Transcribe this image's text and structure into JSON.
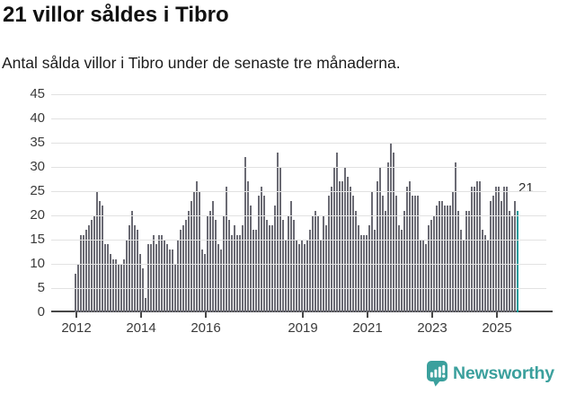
{
  "header": {
    "title": "21 villor såldes i Tibro",
    "subtitle": "Antal sålda villor i Tibro under de senaste tre månaderna."
  },
  "chart_data": {
    "type": "bar",
    "title": "21 villor såldes i Tibro",
    "subtitle": "Antal sålda villor i Tibro under de senaste tre månaderna.",
    "frequency": "monthly",
    "x_start_year": 2012,
    "values": [
      8,
      10,
      16,
      16,
      17,
      18,
      19,
      20,
      25,
      23,
      22,
      14,
      14,
      12,
      11,
      11,
      10,
      10,
      11,
      15,
      18,
      21,
      18,
      17,
      12,
      9,
      3,
      14,
      14,
      16,
      14,
      16,
      16,
      15,
      14,
      13,
      13,
      10,
      15,
      17,
      18,
      19,
      21,
      23,
      25,
      27,
      25,
      13,
      12,
      20,
      21,
      23,
      19,
      14,
      13,
      20,
      26,
      19,
      16,
      18,
      16,
      16,
      18,
      32,
      27,
      22,
      17,
      17,
      24,
      26,
      24,
      19,
      18,
      18,
      22,
      33,
      30,
      19,
      15,
      20,
      23,
      19,
      15,
      14,
      15,
      14,
      15,
      17,
      20,
      21,
      20,
      15,
      20,
      18,
      24,
      26,
      30,
      33,
      27,
      27,
      30,
      28,
      26,
      24,
      21,
      18,
      16,
      16,
      16,
      18,
      25,
      17,
      27,
      30,
      24,
      21,
      31,
      35,
      33,
      24,
      18,
      17,
      21,
      26,
      27,
      24,
      24,
      24,
      15,
      15,
      14,
      18,
      19,
      20,
      22,
      23,
      23,
      22,
      22,
      22,
      25,
      31,
      21,
      17,
      15,
      21,
      21,
      26,
      26,
      27,
      27,
      17,
      16,
      15,
      23,
      24,
      26,
      26,
      23,
      26,
      26,
      21,
      20,
      23,
      21
    ],
    "highlight_last": true,
    "last_value_label": "21",
    "ylim": [
      0,
      45
    ],
    "yticks": [
      0,
      5,
      10,
      15,
      20,
      25,
      30,
      35,
      40,
      45
    ],
    "xticks": [
      {
        "label": "2012",
        "index": 0
      },
      {
        "label": "2014",
        "index": 24
      },
      {
        "label": "2016",
        "index": 48
      },
      {
        "label": "2019",
        "index": 84
      },
      {
        "label": "2021",
        "index": 108
      },
      {
        "label": "2023",
        "index": 132
      },
      {
        "label": "2025",
        "index": 156
      }
    ],
    "grid": "horizontal",
    "legend": "none",
    "colors": {
      "bar": "#6b6b74",
      "highlight": "#149b9b",
      "gridline": "#e2e2e2",
      "axis": "#474747",
      "tick_text": "#3a3a3a",
      "brand": "#3ba09d"
    }
  },
  "footer": {
    "brand": "Newsworthy"
  }
}
